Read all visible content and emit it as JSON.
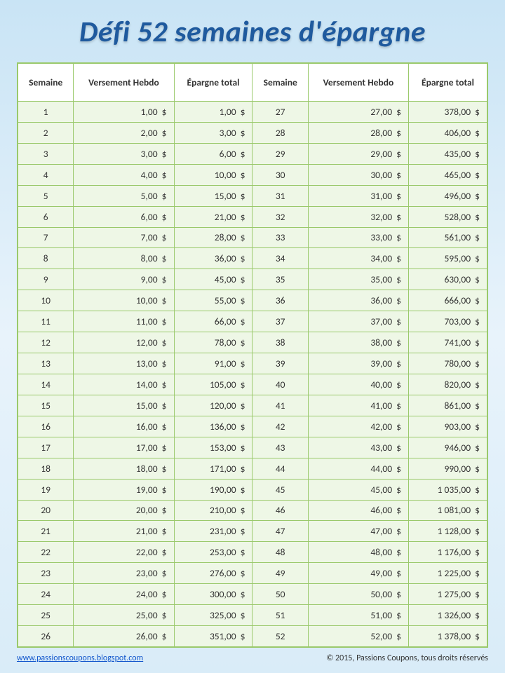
{
  "title": "Défi 52 semaines d'épargne",
  "columns": [
    "Semaine",
    "Versement Hebdo",
    "Épargne total",
    "Semaine",
    "Versement Hebdo",
    "Épargne total"
  ],
  "rows": [
    [
      "1",
      "1,00",
      "1,00",
      "27",
      "27,00",
      "378,00"
    ],
    [
      "2",
      "2,00",
      "3,00",
      "28",
      "28,00",
      "406,00"
    ],
    [
      "3",
      "3,00",
      "6,00",
      "29",
      "29,00",
      "435,00"
    ],
    [
      "4",
      "4,00",
      "10,00",
      "30",
      "30,00",
      "465,00"
    ],
    [
      "5",
      "5,00",
      "15,00",
      "31",
      "31,00",
      "496,00"
    ],
    [
      "6",
      "6,00",
      "21,00",
      "32",
      "32,00",
      "528,00"
    ],
    [
      "7",
      "7,00",
      "28,00",
      "33",
      "33,00",
      "561,00"
    ],
    [
      "8",
      "8,00",
      "36,00",
      "34",
      "34,00",
      "595,00"
    ],
    [
      "9",
      "9,00",
      "45,00",
      "35",
      "35,00",
      "630,00"
    ],
    [
      "10",
      "10,00",
      "55,00",
      "36",
      "36,00",
      "666,00"
    ],
    [
      "11",
      "11,00",
      "66,00",
      "37",
      "37,00",
      "703,00"
    ],
    [
      "12",
      "12,00",
      "78,00",
      "38",
      "38,00",
      "741,00"
    ],
    [
      "13",
      "13,00",
      "91,00",
      "39",
      "39,00",
      "780,00"
    ],
    [
      "14",
      "14,00",
      "105,00",
      "40",
      "40,00",
      "820,00"
    ],
    [
      "15",
      "15,00",
      "120,00",
      "41",
      "41,00",
      "861,00"
    ],
    [
      "16",
      "16,00",
      "136,00",
      "42",
      "42,00",
      "903,00"
    ],
    [
      "17",
      "17,00",
      "153,00",
      "43",
      "43,00",
      "946,00"
    ],
    [
      "18",
      "18,00",
      "171,00",
      "44",
      "44,00",
      "990,00"
    ],
    [
      "19",
      "19,00",
      "190,00",
      "45",
      "45,00",
      "1 035,00"
    ],
    [
      "20",
      "20,00",
      "210,00",
      "46",
      "46,00",
      "1 081,00"
    ],
    [
      "21",
      "21,00",
      "231,00",
      "47",
      "47,00",
      "1 128,00"
    ],
    [
      "22",
      "22,00",
      "253,00",
      "48",
      "48,00",
      "1 176,00"
    ],
    [
      "23",
      "23,00",
      "276,00",
      "49",
      "49,00",
      "1 225,00"
    ],
    [
      "24",
      "24,00",
      "300,00",
      "50",
      "50,00",
      "1 275,00"
    ],
    [
      "25",
      "25,00",
      "325,00",
      "51",
      "51,00",
      "1 326,00"
    ],
    [
      "26",
      "26,00",
      "351,00",
      "52",
      "52,00",
      "1 378,00"
    ]
  ],
  "currency_suffix": "  $",
  "footer": {
    "url": "www.passionscoupons.blogspot.com",
    "copyright": "© 2015, Passions Coupons, tous droits réservés"
  },
  "style": {
    "header_bg": "#ffffff",
    "row_bg": "#eef7e6",
    "border_color": "#9ac96b",
    "title_color": "#1f5a9e",
    "col_types": [
      "center",
      "money",
      "money",
      "center",
      "money",
      "money"
    ]
  }
}
